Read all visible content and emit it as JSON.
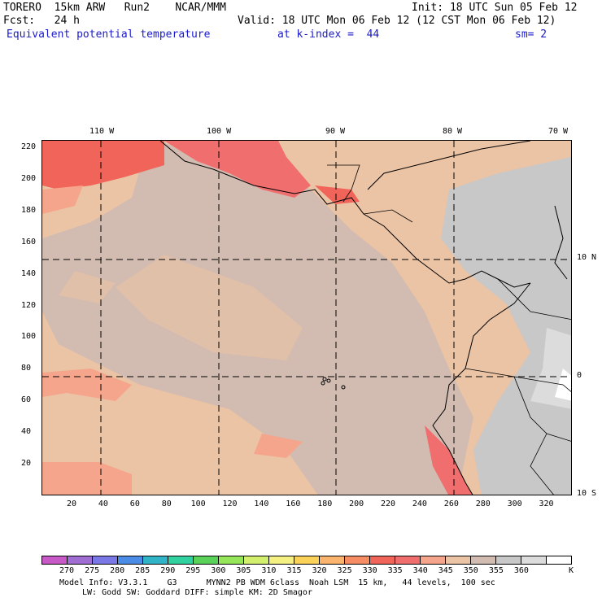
{
  "header": {
    "model": "TORERO  15km ARW   Run2    NCAR/MMM",
    "init": "Init: 18 UTC Sun 05 Feb 12",
    "forecast": "Fcst:   24 h",
    "valid": "Valid: 18 UTC Mon 06 Feb 12 (12 CST Mon 06 Feb 12)",
    "field": "Equivalent potential temperature",
    "level": "at k-index =  44",
    "smoothing": "sm= 2"
  },
  "map": {
    "top_axis_labels": [
      "110 W",
      "100 W",
      "90 W",
      "80 W",
      "70 W"
    ],
    "right_axis_labels": [
      "10 N",
      "0",
      "10 S"
    ],
    "left_axis_labels": [
      "220",
      "200",
      "180",
      "160",
      "140",
      "120",
      "100",
      "80",
      "60",
      "40",
      "20"
    ],
    "bottom_axis_labels": [
      "20",
      "40",
      "60",
      "80",
      "100",
      "120",
      "140",
      "160",
      "180",
      "200",
      "220",
      "240",
      "260",
      "280",
      "300",
      "320"
    ]
  },
  "colorbar": {
    "unit": "K",
    "labels": [
      "270",
      "275",
      "280",
      "285",
      "290",
      "295",
      "300",
      "305",
      "310",
      "315",
      "320",
      "325",
      "330",
      "335",
      "340",
      "345",
      "350",
      "355",
      "360"
    ],
    "colors": [
      "#c85ac8",
      "#a06ed2",
      "#7a78e6",
      "#4a8ce6",
      "#32b4c8",
      "#32d2a0",
      "#5ad25a",
      "#96e65a",
      "#d2f06e",
      "#f5f082",
      "#fad25a",
      "#fab46e",
      "#f58c64",
      "#f0645a",
      "#f06e6e",
      "#f5a58c",
      "#ebc3a5",
      "#d2bbb0",
      "#c8c8c8",
      "#dcdcdc",
      "#ffffff"
    ]
  },
  "footer": {
    "line1": "Model Info: V3.3.1    G3      MYNN2 PB WDM 6class  Noah LSM  15 km,   44 levels,  100 sec",
    "line2": "LW: Godd SW: Goddard DIFF: simple KM: 2D Smagor"
  }
}
